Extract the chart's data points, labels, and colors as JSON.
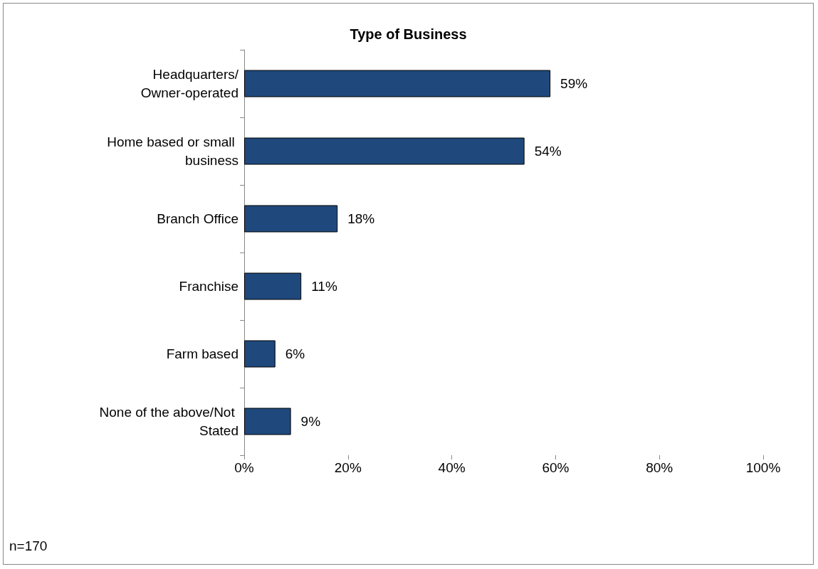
{
  "chart_data": {
    "type": "bar",
    "orientation": "horizontal",
    "title": "Type of Business",
    "categories": [
      "Headquarters/Owner-operated",
      "Home based or small business",
      "Branch Office",
      "Franchise",
      "Farm based",
      "None of the above/Not Stated"
    ],
    "values": [
      59,
      54,
      18,
      11,
      6,
      9
    ],
    "value_labels": [
      "59%",
      "54%",
      "18%",
      "11%",
      "6%",
      "9%"
    ],
    "color": "#1f497d",
    "xlim": [
      0,
      100
    ],
    "xticks": [
      {
        "value": 0,
        "label": "0%"
      },
      {
        "value": 20,
        "label": "20%"
      },
      {
        "value": 40,
        "label": "40%"
      },
      {
        "value": 60,
        "label": "60%"
      },
      {
        "value": 80,
        "label": "80%"
      },
      {
        "value": 100,
        "label": "100%"
      }
    ],
    "grid": false,
    "annotations": [
      "n=170"
    ]
  }
}
